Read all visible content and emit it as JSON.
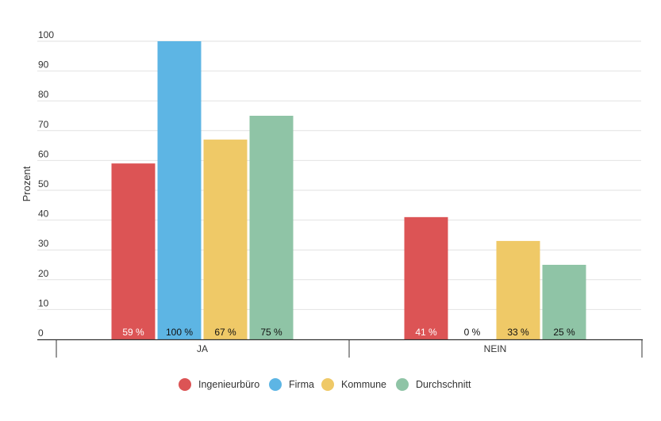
{
  "chart_data": {
    "type": "bar",
    "title": "",
    "xlabel": "",
    "ylabel": "Prozent",
    "ylim": [
      0,
      100
    ],
    "yticks": [
      0,
      10,
      20,
      30,
      40,
      50,
      60,
      70,
      80,
      90,
      100
    ],
    "grid": true,
    "legend_position": "bottom-center",
    "categories": [
      "JA",
      "NEIN"
    ],
    "series": [
      {
        "name": "Ingenieurbüro",
        "color": "#dc5455",
        "values": [
          59,
          41
        ],
        "labels": [
          "59 %",
          "41 %"
        ]
      },
      {
        "name": "Firma",
        "color": "#5db5e4",
        "values": [
          100,
          0
        ],
        "labels": [
          "100 %",
          "0 %"
        ]
      },
      {
        "name": "Kommune",
        "color": "#efc967",
        "values": [
          67,
          33
        ],
        "labels": [
          "67 %",
          "33 %"
        ]
      },
      {
        "name": "Durchschnitt",
        "color": "#8fc4a6",
        "values": [
          75,
          25
        ],
        "labels": [
          "75 %",
          "25 %"
        ]
      }
    ]
  }
}
